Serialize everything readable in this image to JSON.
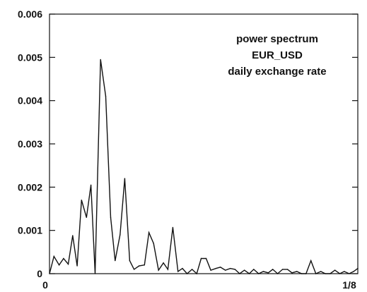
{
  "chart_data": {
    "type": "line",
    "title": "",
    "xlabel": "",
    "ylabel": "",
    "annotation_lines": [
      "power spectrum",
      "EUR_USD",
      "daily exchange rate"
    ],
    "xlim": [
      0,
      0.125
    ],
    "ylim": [
      0,
      0.006
    ],
    "x_tick_labels": [
      {
        "value": 0,
        "label": "0"
      },
      {
        "value": 0.125,
        "label": "1/8"
      }
    ],
    "y_tick_labels": [
      {
        "value": 0,
        "label": "0"
      },
      {
        "value": 0.001,
        "label": "0.001"
      },
      {
        "value": 0.002,
        "label": "0.002"
      },
      {
        "value": 0.003,
        "label": "0.003"
      },
      {
        "value": 0.004,
        "label": "0.004"
      },
      {
        "value": 0.005,
        "label": "0.005"
      },
      {
        "value": 0.006,
        "label": "0.006"
      }
    ],
    "grid": false,
    "series": [
      {
        "color": "#111111",
        "x": [
          0.0,
          0.0018,
          0.0039,
          0.0057,
          0.0076,
          0.0094,
          0.0112,
          0.013,
          0.015,
          0.0168,
          0.0185,
          0.0207,
          0.0228,
          0.0248,
          0.0266,
          0.0286,
          0.0305,
          0.0325,
          0.0343,
          0.0363,
          0.0385,
          0.0403,
          0.0422,
          0.0442,
          0.0462,
          0.048,
          0.05,
          0.0521,
          0.0539,
          0.0558,
          0.0578,
          0.0597,
          0.0615,
          0.0635,
          0.0654,
          0.0675,
          0.0693,
          0.0713,
          0.0733,
          0.0752,
          0.0771,
          0.079,
          0.081,
          0.0828,
          0.0848,
          0.0867,
          0.0887,
          0.0905,
          0.0925,
          0.0945,
          0.0965,
          0.0983,
          0.1003,
          0.1022,
          0.104,
          0.106,
          0.108,
          0.11,
          0.1118,
          0.1138,
          0.1157,
          0.1177,
          0.1195,
          0.1215,
          0.1233,
          0.125
        ],
        "y": [
          0.0,
          0.0004,
          0.0002,
          0.00035,
          0.00022,
          0.00088,
          0.00018,
          0.0017,
          0.0013,
          0.00205,
          0.0,
          0.00495,
          0.0041,
          0.0013,
          0.0003,
          0.0009,
          0.0022,
          0.0003,
          0.0001,
          0.00018,
          0.0002,
          0.00095,
          0.0007,
          8e-05,
          0.00025,
          0.0001,
          0.00107,
          5e-05,
          0.00012,
          0.0,
          0.0001,
          0.0,
          0.00035,
          0.00035,
          8e-05,
          0.00012,
          0.00015,
          8e-05,
          0.00012,
          0.0001,
          0.0,
          8e-05,
          0.0,
          0.0001,
          0.0,
          5e-05,
          2e-05,
          0.0001,
          0.0,
          0.0001,
          0.0001,
          2e-05,
          5e-05,
          0.0,
          0.0,
          0.0003,
          0.0,
          5e-05,
          0.0,
          0.0,
          8e-05,
          0.0,
          5e-05,
          0.0,
          5e-05,
          0.00012
        ]
      }
    ]
  }
}
